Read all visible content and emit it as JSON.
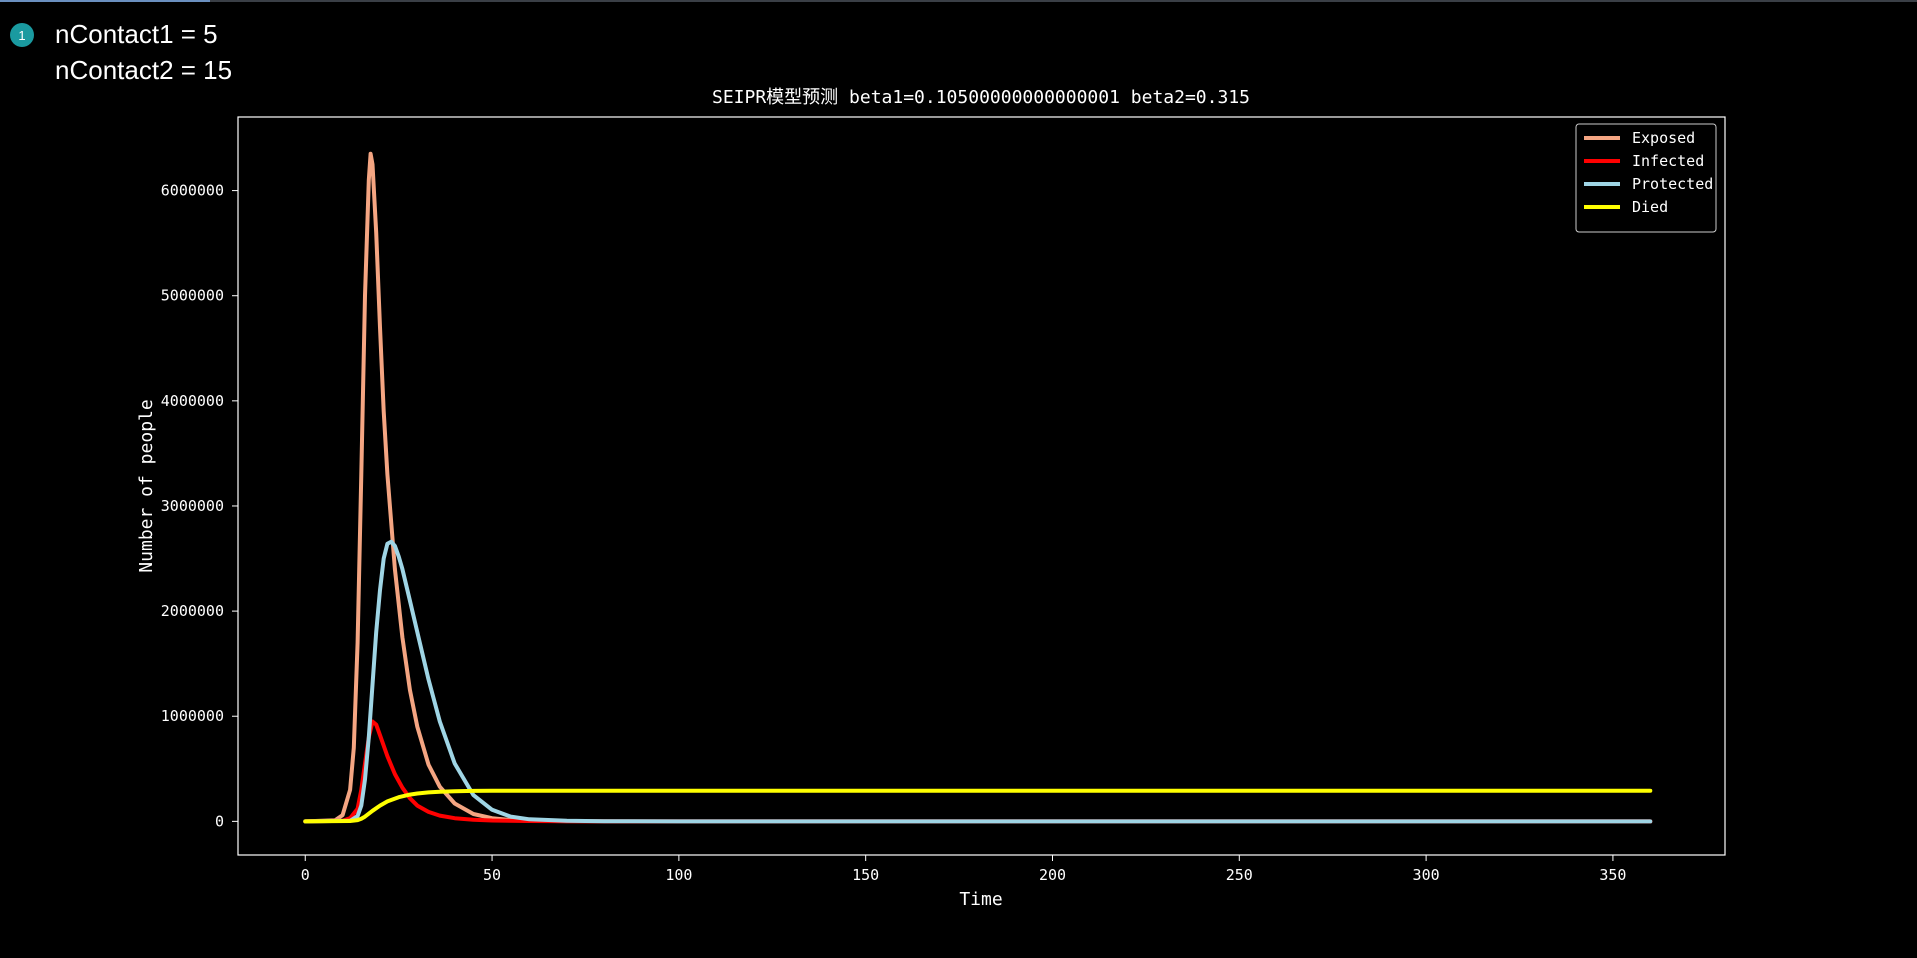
{
  "output": {
    "execution_badge": "1",
    "lines": [
      "nContact1 = 5",
      "nContact2 = 15"
    ]
  },
  "colors": {
    "background": "#000000",
    "foreground": "#ffffff",
    "badge": "#1a9aa0"
  },
  "chart_data": {
    "type": "line",
    "title": "SEIPR模型预测 beta1=0.10500000000000001 beta2=0.315",
    "xlabel": "Time",
    "ylabel": "Number of people",
    "xlim": [
      -18,
      380
    ],
    "ylim": [
      -320000,
      6700000
    ],
    "xticks": [
      0,
      50,
      100,
      150,
      200,
      250,
      300,
      350
    ],
    "yticks": [
      0,
      1000000,
      2000000,
      3000000,
      4000000,
      5000000,
      6000000
    ],
    "legend_position": "top-right",
    "grid": false,
    "series": [
      {
        "name": "Exposed",
        "color": "#f4a582",
        "x": [
          0,
          8,
          10,
          12,
          13,
          14,
          15,
          16,
          17,
          17.5,
          18,
          19,
          20,
          21,
          22,
          24,
          26,
          28,
          30,
          33,
          36,
          40,
          45,
          50,
          55,
          60,
          70,
          80,
          100,
          150,
          200,
          250,
          300,
          360
        ],
        "y": [
          0,
          10000,
          60000,
          300000,
          700000,
          1700000,
          3300000,
          5000000,
          6100000,
          6350000,
          6250000,
          5600000,
          4700000,
          3900000,
          3300000,
          2400000,
          1750000,
          1250000,
          900000,
          540000,
          330000,
          170000,
          70000,
          30000,
          12000,
          5000,
          2000,
          1000,
          0,
          0,
          0,
          0,
          0,
          0
        ]
      },
      {
        "name": "Infected",
        "color": "#ff0000",
        "x": [
          0,
          10,
          12,
          14,
          15,
          16,
          17,
          18,
          19,
          20,
          22,
          24,
          26,
          28,
          30,
          33,
          36,
          40,
          45,
          50,
          60,
          70,
          80,
          100,
          150,
          200,
          250,
          300,
          360
        ],
        "y": [
          0,
          5000,
          30000,
          120000,
          300000,
          550000,
          800000,
          950000,
          920000,
          820000,
          620000,
          450000,
          320000,
          220000,
          150000,
          90000,
          55000,
          30000,
          15000,
          8000,
          3000,
          1000,
          0,
          0,
          0,
          0,
          0,
          0,
          0
        ]
      },
      {
        "name": "Protected",
        "color": "#9fd5e5",
        "x": [
          0,
          12,
          14,
          15,
          16,
          17,
          18,
          19,
          20,
          21,
          22,
          23,
          24,
          25,
          26,
          28,
          30,
          33,
          36,
          40,
          45,
          50,
          55,
          60,
          70,
          80,
          100,
          150,
          200,
          250,
          300,
          360
        ],
        "y": [
          0,
          5000,
          50000,
          150000,
          400000,
          800000,
          1300000,
          1800000,
          2200000,
          2500000,
          2640000,
          2660000,
          2620000,
          2520000,
          2400000,
          2100000,
          1800000,
          1350000,
          950000,
          550000,
          250000,
          110000,
          45000,
          20000,
          5000,
          1500,
          0,
          0,
          0,
          0,
          0,
          0
        ]
      },
      {
        "name": "Died",
        "color": "#ffff00",
        "x": [
          0,
          12,
          14,
          15,
          16,
          18,
          20,
          22,
          25,
          28,
          30,
          33,
          36,
          40,
          45,
          50,
          60,
          80,
          100,
          150,
          200,
          250,
          300,
          360
        ],
        "y": [
          0,
          3000,
          12000,
          25000,
          45000,
          100000,
          150000,
          190000,
          230000,
          255000,
          265000,
          275000,
          282000,
          287000,
          290000,
          291000,
          292000,
          292000,
          292000,
          292000,
          292000,
          292000,
          292000,
          292000
        ]
      }
    ]
  }
}
